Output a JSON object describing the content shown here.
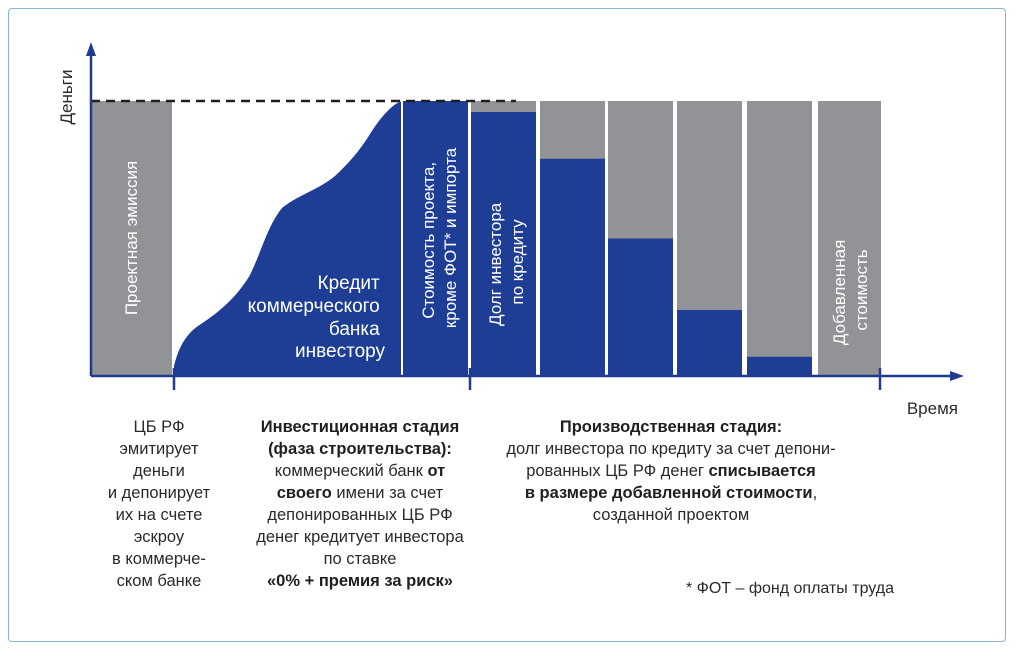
{
  "colors": {
    "blue": "#1e3e96",
    "gray": "#929396",
    "axis": "#1f3a8f"
  },
  "axes": {
    "y_label": "Деньги",
    "x_label": "Время"
  },
  "bars": {
    "emission_label": "Проектная эмиссия",
    "credit_label_lines": [
      "Кредит",
      "коммерческого",
      "банка",
      "инвестору"
    ],
    "cost_label_lines": [
      "Стоимость проекта,",
      "кроме ФОТ* и импорта"
    ],
    "debt_label_lines": [
      "Долг инвестора",
      "по кредиту"
    ],
    "added_value_label_lines": [
      "Добавленная",
      "стоимость"
    ],
    "production_debt_shares": [
      0.96,
      0.79,
      0.5,
      0.24,
      0.07
    ]
  },
  "captions": {
    "cb": [
      "ЦБ РФ",
      "эмитирует",
      "деньги",
      "и депонирует",
      "их на счете",
      "эскроу",
      "в коммерче-",
      "ском банке"
    ],
    "investment": {
      "title1": "Инвестиционная стадия",
      "title2": "(фаза строительства):",
      "l3a": "коммерческий банк ",
      "l3b": "от",
      "l4a": "своего",
      "l4b": " имени за счет",
      "l5": "депонированных ЦБ РФ",
      "l6": "денег кредитует инвестора",
      "l7": "по ставке",
      "l8": "«0% + премия за риск»"
    },
    "production": {
      "title": "Производственная стадия:",
      "l2": "долг инвестора по кредиту за счет депони-",
      "l3a": "рованных ЦБ РФ денег ",
      "l3b": "списывается",
      "l4a": "в размере добавленной стоимости",
      "l4b": ",",
      "l5": "созданной проектом"
    }
  },
  "footnote": "* ФОТ – фонд оплаты труда"
}
